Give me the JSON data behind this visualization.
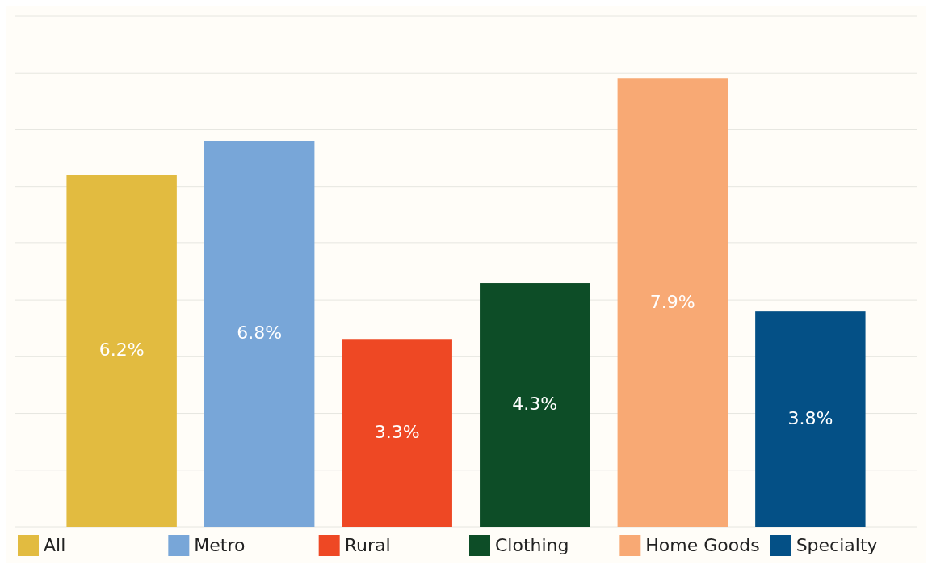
{
  "chart_data": {
    "type": "bar",
    "categories": [
      null
    ],
    "series": [
      {
        "name": "All",
        "color": "#e2bb40",
        "values": [
          6.2
        ],
        "value_labels": [
          "6.2%"
        ]
      },
      {
        "name": "Metro",
        "color": "#78a6d8",
        "values": [
          6.8
        ],
        "value_labels": [
          "6.8%"
        ]
      },
      {
        "name": "Rural",
        "color": "#ee4824",
        "values": [
          3.3
        ],
        "value_labels": [
          "3.3%"
        ]
      },
      {
        "name": "Clothing",
        "color": "#0d4d27",
        "values": [
          4.3
        ],
        "value_labels": [
          "4.3%"
        ]
      },
      {
        "name": "Home Goods",
        "color": "#f8a974",
        "values": [
          7.9
        ],
        "value_labels": [
          "7.9%"
        ]
      },
      {
        "name": "Specialty",
        "color": "#045086",
        "values": [
          3.8
        ],
        "value_labels": [
          "3.8%"
        ]
      }
    ],
    "ylim": [
      0,
      9
    ],
    "yticks": [
      {
        "value": 0,
        "label": null
      },
      {
        "value": 1,
        "label": null
      },
      {
        "value": 2,
        "label": null
      },
      {
        "value": 3,
        "label": null
      },
      {
        "value": 4,
        "label": null
      },
      {
        "value": 5,
        "label": null
      },
      {
        "value": 6,
        "label": null
      },
      {
        "value": 7,
        "label": null
      },
      {
        "value": 8,
        "label": null
      },
      {
        "value": 9,
        "label": null
      }
    ],
    "grid": "y",
    "legend": "bottom"
  }
}
